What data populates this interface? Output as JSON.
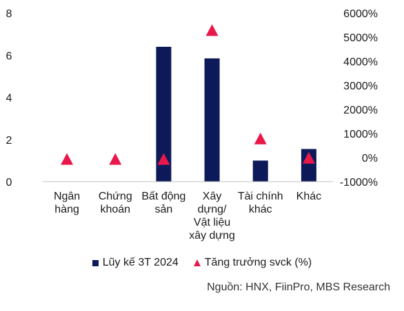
{
  "chart_data": {
    "type": "bar",
    "categories": [
      [
        "Ngân",
        "hàng"
      ],
      [
        "Chứng",
        "khoán"
      ],
      [
        "Bất động",
        "sản"
      ],
      [
        "Xây",
        "dựng/",
        "Vật liệu",
        "xây dựng"
      ],
      [
        "Tài chính",
        "khác"
      ],
      [
        "Khác"
      ]
    ],
    "series": [
      {
        "name": "Lũy kế 3T 2024",
        "kind": "bar",
        "axis": "left",
        "color": "#0d1a5a",
        "values": [
          0,
          0,
          6.4,
          5.85,
          1.0,
          1.55
        ]
      },
      {
        "name": "Tăng trưởng svck (%)",
        "kind": "marker",
        "marker": "triangle",
        "axis": "right",
        "color": "#e8184a",
        "values": [
          -100,
          -100,
          -100,
          5250,
          750,
          -50
        ]
      }
    ],
    "y_left": {
      "ylim": [
        0,
        8
      ],
      "ticks": [
        "0",
        "2",
        "4",
        "6",
        "8"
      ]
    },
    "y_right": {
      "ylim": [
        -1000,
        6000
      ],
      "ticks": [
        "-1000%",
        "0%",
        "1000%",
        "2000%",
        "3000%",
        "4000%",
        "5000%",
        "6000%"
      ]
    },
    "grid": false,
    "legend_position": "bottom"
  },
  "legend": {
    "bar_label": "Lũy kế 3T 2024",
    "marker_label": "Tăng trưởng svck (%)"
  },
  "source": "Nguồn: HNX, FiinPro, MBS Research"
}
